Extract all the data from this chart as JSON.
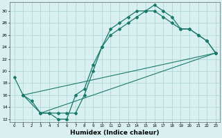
{
  "line1_x": [
    0,
    1,
    2,
    3,
    4,
    5,
    6,
    7,
    8,
    9,
    10,
    11,
    12,
    13,
    14,
    15,
    16,
    17,
    18,
    19,
    20,
    21,
    22,
    23
  ],
  "line1_y": [
    19,
    16,
    15,
    13,
    13,
    12,
    12,
    16,
    17,
    21,
    24,
    27,
    28,
    29,
    30,
    30,
    31,
    30,
    29,
    27,
    27,
    26,
    25,
    23
  ],
  "line2_x": [
    1,
    3,
    4,
    5,
    6,
    7,
    8,
    9,
    10,
    11,
    12,
    13,
    14,
    15,
    16,
    17,
    18,
    19,
    20,
    21,
    22,
    23
  ],
  "line2_y": [
    16,
    13,
    13,
    13,
    13,
    13,
    16,
    20,
    24,
    26,
    27,
    28,
    29,
    30,
    30,
    29,
    28,
    27,
    27,
    26,
    25,
    23
  ],
  "line3_x": [
    1,
    23
  ],
  "line3_y": [
    16,
    23
  ],
  "line4_x": [
    3,
    23
  ],
  "line4_y": [
    13,
    23
  ],
  "color": "#1a7a6a",
  "bg_color": "#d8f0ef",
  "grid_color": "#afd6d3",
  "xlabel": "Humidex (Indice chaleur)",
  "xlabel_fontsize": 6.5,
  "ylabel_ticks": [
    12,
    14,
    16,
    18,
    20,
    22,
    24,
    26,
    28,
    30
  ],
  "xlim": [
    -0.5,
    23.5
  ],
  "ylim": [
    11.5,
    31.5
  ]
}
